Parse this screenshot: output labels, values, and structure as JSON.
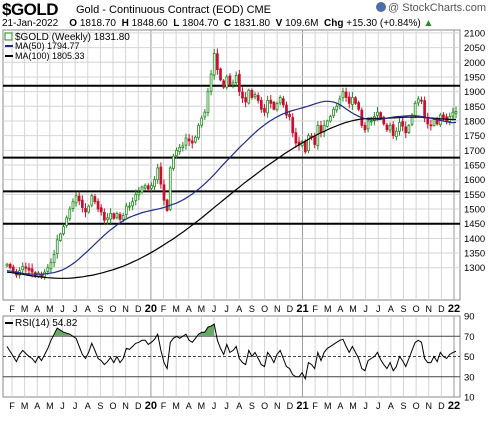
{
  "header": {
    "ticker": "$GOLD",
    "name": "Gold - Continuous Contract (EOD)",
    "exchange": "CME",
    "date": "21-Jan-2022",
    "open_label": "O",
    "open": "1818.70",
    "high_label": "H",
    "high": "1848.60",
    "low_label": "L",
    "low": "1804.70",
    "close_label": "C",
    "close": "1831.80",
    "volume_label": "V",
    "volume": "109.6M",
    "change_label": "Chg",
    "change": "+15.30 (+0.84%)",
    "change_marker": "▲",
    "logo": "@ StockCharts.com"
  },
  "colors": {
    "up": "#1f8a1f",
    "down": "#c8102e",
    "ma50": "#1f2a8a",
    "ma100": "#000000",
    "rsi": "#000000",
    "rsi_fill": "#6aa86a",
    "grid": "#d4d4d4"
  },
  "chart_data": [
    {
      "type": "candlestick",
      "title": "Gold - Continuous Contract (EOD)",
      "legend": [
        {
          "label": "$GOLD (Weekly) 1831.80",
          "marker": "square-up"
        },
        {
          "label": "MA(50) 1794.77",
          "color": "#1f2a8a"
        },
        {
          "label": "MA(100) 1805.33",
          "color": "#000000"
        }
      ],
      "ylim": [
        1190,
        2110
      ],
      "y_ticks": [
        1300,
        1350,
        1400,
        1450,
        1500,
        1550,
        1600,
        1650,
        1700,
        1750,
        1800,
        1850,
        1900,
        1950,
        2000,
        2050,
        2100
      ],
      "x_ticks": [
        "F",
        "M",
        "A",
        "M",
        "J",
        "J",
        "A",
        "S",
        "O",
        "N",
        "D",
        "20",
        "F",
        "M",
        "A",
        "M",
        "J",
        "J",
        "A",
        "S",
        "O",
        "N",
        "D",
        "21",
        "F",
        "M",
        "A",
        "M",
        "J",
        "J",
        "A",
        "S",
        "O",
        "N",
        "D",
        "22"
      ],
      "horizontal_lines": [
        1920,
        1675,
        1560,
        1450
      ],
      "close_path": [
        1312,
        1300,
        1290,
        1275,
        1290,
        1305,
        1298,
        1292,
        1285,
        1270,
        1282,
        1270,
        1285,
        1300,
        1318,
        1345,
        1395,
        1415,
        1440,
        1470,
        1500,
        1525,
        1545,
        1528,
        1505,
        1490,
        1510,
        1545,
        1525,
        1500,
        1490,
        1462,
        1470,
        1485,
        1468,
        1485,
        1465,
        1478,
        1510,
        1510,
        1525,
        1550,
        1556,
        1575,
        1580,
        1568,
        1580,
        1600,
        1640,
        1585,
        1530,
        1495,
        1640,
        1680,
        1700,
        1710,
        1715,
        1742,
        1732,
        1725,
        1745,
        1785,
        1810,
        1830,
        1900,
        1960,
        2030,
        1975,
        1940,
        1915,
        1950,
        1925,
        1930,
        1955,
        1900,
        1878,
        1865,
        1905,
        1880,
        1890,
        1870,
        1840,
        1830,
        1870,
        1860,
        1840,
        1860,
        1880,
        1855,
        1820,
        1815,
        1760,
        1725,
        1718,
        1730,
        1695,
        1750,
        1745,
        1720,
        1785,
        1760,
        1785,
        1800,
        1815,
        1840,
        1850,
        1875,
        1900,
        1880,
        1860,
        1880,
        1860,
        1840,
        1785,
        1770,
        1800,
        1800,
        1815,
        1830,
        1810,
        1790,
        1770,
        1785,
        1750,
        1765,
        1795,
        1782,
        1760,
        1785,
        1820,
        1860,
        1875,
        1870,
        1810,
        1790,
        1785,
        1805,
        1790,
        1820,
        1810,
        1800,
        1815,
        1830,
        1832
      ],
      "ma50": [
        1290,
        1288,
        1285,
        1283,
        1280,
        1279,
        1278,
        1278,
        1278,
        1279,
        1281,
        1283,
        1287,
        1292,
        1299,
        1308,
        1318,
        1330,
        1343,
        1356,
        1370,
        1384,
        1398,
        1411,
        1424,
        1435,
        1446,
        1456,
        1465,
        1472,
        1478,
        1483,
        1488,
        1492,
        1495,
        1498,
        1501,
        1505,
        1510,
        1515,
        1520,
        1527,
        1535,
        1544,
        1554,
        1565,
        1577,
        1590,
        1604,
        1619,
        1635,
        1651,
        1666,
        1681,
        1696,
        1711,
        1725,
        1739,
        1753,
        1766,
        1778,
        1789,
        1799,
        1808,
        1816,
        1823,
        1829,
        1834,
        1838,
        1842,
        1846,
        1850,
        1855,
        1860,
        1864,
        1867,
        1867,
        1865,
        1860,
        1852,
        1842,
        1832,
        1823,
        1816,
        1810,
        1806,
        1804,
        1804,
        1805,
        1808,
        1811,
        1813,
        1815,
        1816,
        1817,
        1818,
        1818,
        1817,
        1815,
        1812,
        1809,
        1806,
        1803,
        1800,
        1797,
        1794,
        1795
      ],
      "ma100": [
        1285,
        1283,
        1280,
        1278,
        1275,
        1272,
        1270,
        1268,
        1266,
        1265,
        1264,
        1264,
        1264,
        1265,
        1267,
        1269,
        1272,
        1275,
        1279,
        1283,
        1288,
        1293,
        1299,
        1305,
        1312,
        1320,
        1328,
        1337,
        1346,
        1356,
        1366,
        1377,
        1388,
        1399,
        1411,
        1423,
        1436,
        1449,
        1462,
        1476,
        1490,
        1504,
        1518,
        1532,
        1546,
        1560,
        1574,
        1588,
        1601,
        1614,
        1627,
        1640,
        1652,
        1664,
        1676,
        1688,
        1699,
        1710,
        1720,
        1730,
        1740,
        1749,
        1758,
        1766,
        1774,
        1781,
        1788,
        1794,
        1799,
        1803,
        1806,
        1808,
        1809,
        1809,
        1809,
        1809,
        1810,
        1811,
        1812,
        1813,
        1813,
        1813,
        1813,
        1812,
        1810,
        1809,
        1807,
        1806,
        1805,
        1805
      ]
    },
    {
      "type": "line",
      "title": "RSI(14) 54.82",
      "legend": [
        {
          "label": "RSI(14) 54.82"
        }
      ],
      "ylim": [
        10,
        90
      ],
      "y_ticks": [
        10,
        30,
        50,
        70,
        90
      ],
      "reference_lines": [
        70,
        50,
        30
      ],
      "x_ticks": [
        "F",
        "M",
        "A",
        "M",
        "J",
        "J",
        "A",
        "S",
        "O",
        "N",
        "D",
        "20",
        "F",
        "M",
        "A",
        "M",
        "J",
        "J",
        "A",
        "S",
        "O",
        "N",
        "D",
        "21",
        "F",
        "M",
        "A",
        "M",
        "J",
        "J",
        "A",
        "S",
        "O",
        "N",
        "D",
        "22"
      ],
      "values": [
        60,
        55,
        50,
        45,
        52,
        56,
        53,
        50,
        48,
        44,
        50,
        46,
        52,
        58,
        66,
        72,
        78,
        76,
        74,
        73,
        72,
        70,
        68,
        60,
        52,
        48,
        54,
        63,
        56,
        48,
        46,
        42,
        45,
        49,
        44,
        50,
        44,
        48,
        58,
        57,
        60,
        63,
        64,
        66,
        66,
        62,
        64,
        67,
        72,
        56,
        44,
        38,
        64,
        68,
        70,
        68,
        70,
        72,
        66,
        64,
        68,
        72,
        74,
        74,
        79,
        80,
        82,
        66,
        58,
        52,
        62,
        54,
        56,
        60,
        48,
        44,
        42,
        56,
        50,
        54,
        48,
        42,
        40,
        54,
        50,
        44,
        52,
        56,
        48,
        40,
        38,
        32,
        30,
        30,
        34,
        28,
        44,
        42,
        38,
        54,
        46,
        54,
        58,
        60,
        62,
        64,
        66,
        67,
        60,
        54,
        60,
        54,
        48,
        38,
        36,
        46,
        48,
        50,
        54,
        47,
        42,
        38,
        44,
        36,
        40,
        50,
        46,
        40,
        48,
        56,
        64,
        66,
        64,
        48,
        44,
        44,
        50,
        45,
        54,
        50,
        48,
        52,
        54,
        55
      ]
    }
  ]
}
